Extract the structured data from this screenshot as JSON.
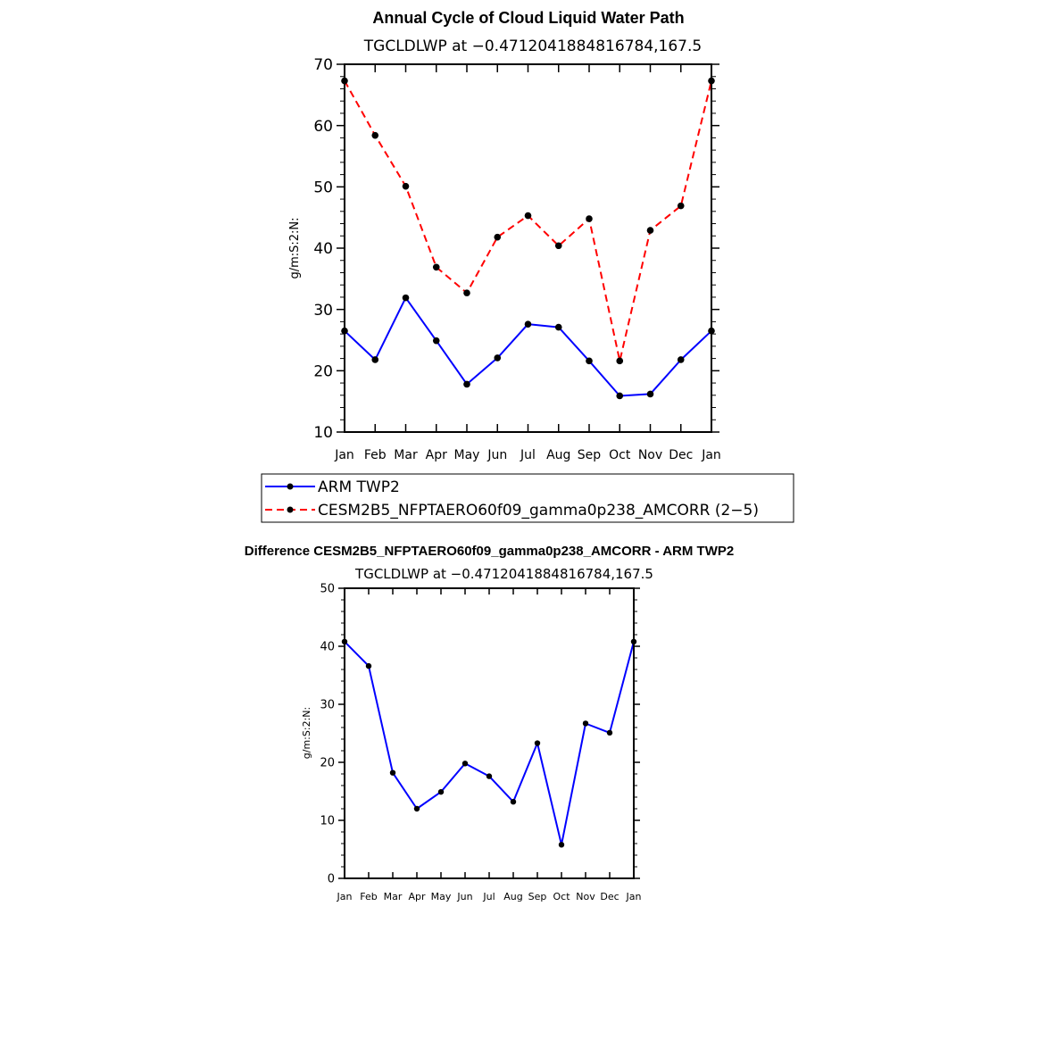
{
  "chart_data": [
    {
      "type": "line",
      "title": "Annual Cycle of Cloud Liquid Water Path",
      "subtitle": "TGCLDLWP at −0.4712041884816784,167.5",
      "xlabel": "",
      "ylabel": "g/m:S:2:N:",
      "categories": [
        "Jan",
        "Feb",
        "Mar",
        "Apr",
        "May",
        "Jun",
        "Jul",
        "Aug",
        "Sep",
        "Oct",
        "Nov",
        "Dec",
        "Jan"
      ],
      "ylim": [
        10,
        70
      ],
      "yticks": [
        "10",
        "20",
        "30",
        "40",
        "50",
        "60",
        "70"
      ],
      "legend_position": "below",
      "series": [
        {
          "name": "ARM TWP2",
          "color": "#0000ff",
          "dash": "solid",
          "values": [
            26.5,
            21.8,
            31.9,
            24.9,
            17.8,
            22.1,
            27.6,
            27.1,
            21.6,
            15.9,
            16.2,
            21.8,
            26.5
          ]
        },
        {
          "name": "CESM2B5_NFPTAERO60f09_gamma0p238_AMCORR (2−5)",
          "color": "#ff0000",
          "dash": "dashed",
          "values": [
            67.3,
            58.4,
            50.1,
            36.9,
            32.7,
            41.8,
            45.3,
            40.4,
            44.8,
            21.6,
            42.9,
            46.9,
            67.3
          ]
        }
      ]
    },
    {
      "type": "line",
      "title": "Difference CESM2B5_NFPTAERO60f09_gamma0p238_AMCORR - ARM TWP2",
      "subtitle": "TGCLDLWP at −0.4712041884816784,167.5",
      "xlabel": "",
      "ylabel": "g/m:S:2:N:",
      "categories": [
        "Jan",
        "Feb",
        "Mar",
        "Apr",
        "May",
        "Jun",
        "Jul",
        "Aug",
        "Sep",
        "Oct",
        "Nov",
        "Dec",
        "Jan"
      ],
      "ylim": [
        0,
        50
      ],
      "yticks": [
        "0",
        "10",
        "20",
        "30",
        "40",
        "50"
      ],
      "series": [
        {
          "name": "Difference",
          "color": "#0000ff",
          "dash": "solid",
          "values": [
            40.8,
            36.6,
            18.2,
            12.0,
            14.9,
            19.8,
            17.6,
            13.2,
            23.3,
            5.8,
            26.7,
            25.1,
            40.8
          ]
        }
      ]
    }
  ]
}
